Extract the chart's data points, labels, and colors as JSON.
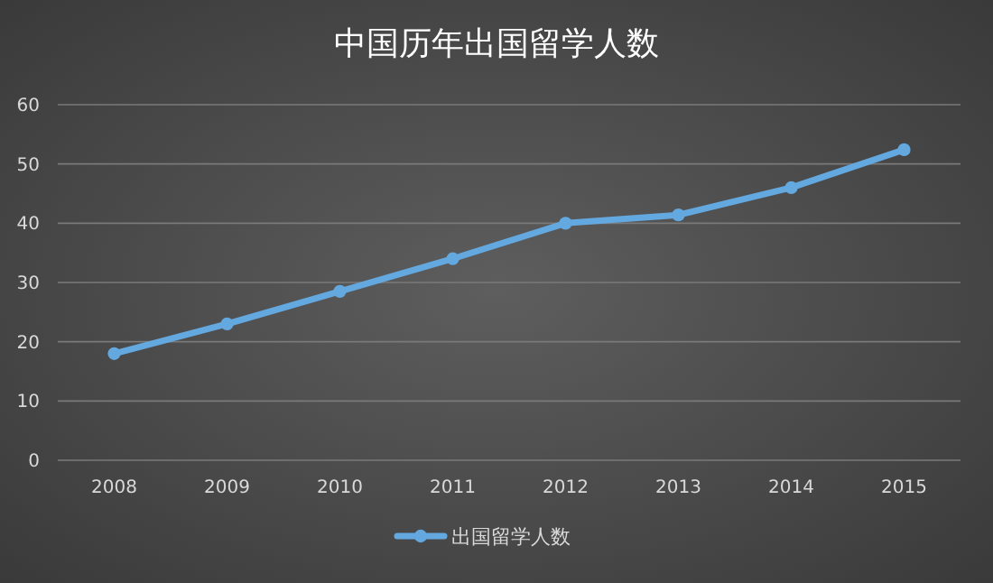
{
  "chart_data": {
    "type": "line",
    "title": "中国历年出国留学人数",
    "categories": [
      "2008",
      "2009",
      "2010",
      "2011",
      "2012",
      "2013",
      "2014",
      "2015"
    ],
    "series": [
      {
        "name": "出国留学人数",
        "color": "#64a8e0",
        "values": [
          18,
          23,
          28.5,
          34,
          40,
          41.4,
          46,
          52.4
        ]
      }
    ],
    "ylim": [
      0,
      60
    ],
    "yticks": [
      0,
      10,
      20,
      30,
      40,
      50,
      60
    ],
    "grid": "y",
    "legend": "bottom",
    "marker": "circle",
    "line_style": "solid"
  }
}
